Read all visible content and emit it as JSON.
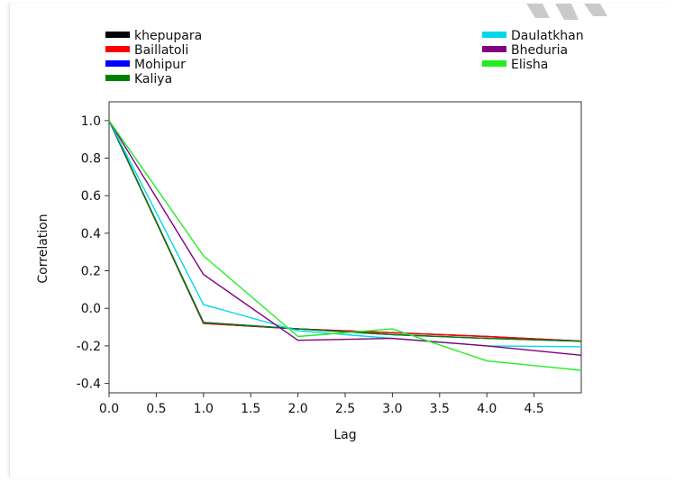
{
  "chart_data": {
    "type": "line",
    "title": "",
    "xlabel": "Lag",
    "ylabel": "Correlation",
    "xlim": [
      0,
      5
    ],
    "ylim": [
      -0.45,
      1.1
    ],
    "grid": false,
    "legend_placement": "top",
    "x_ticks": [
      "0.0",
      "0.5",
      "1.0",
      "1.5",
      "2.0",
      "2.5",
      "3.0",
      "3.5",
      "4.0",
      "4.5"
    ],
    "y_ticks": [
      "1.0",
      "0.8",
      "0.6",
      "0.4",
      "0.2",
      "0.0",
      "-0.2",
      "-0.4"
    ],
    "x": [
      0,
      1,
      2,
      3,
      4,
      5
    ],
    "series": [
      {
        "name": "khepupara",
        "color": "#000000",
        "values": [
          1.0,
          -0.08,
          -0.11,
          -0.13,
          -0.15,
          -0.175
        ]
      },
      {
        "name": "Baillatoli",
        "color": "#ff0000",
        "values": [
          1.0,
          -0.08,
          -0.11,
          -0.13,
          -0.15,
          -0.175
        ]
      },
      {
        "name": "Mohipur",
        "color": "#0000ff",
        "values": [
          1.0,
          -0.075,
          -0.11,
          -0.14,
          -0.16,
          -0.175
        ]
      },
      {
        "name": "Kaliya",
        "color": "#008000",
        "values": [
          1.0,
          -0.075,
          -0.11,
          -0.14,
          -0.16,
          -0.175
        ]
      },
      {
        "name": "Daulatkhan",
        "color": "#00d8e8",
        "values": [
          1.0,
          0.02,
          -0.12,
          -0.16,
          -0.2,
          -0.205
        ]
      },
      {
        "name": "Bheduria",
        "color": "#800080",
        "values": [
          1.0,
          0.18,
          -0.17,
          -0.16,
          -0.2,
          -0.25
        ]
      },
      {
        "name": "Elisha",
        "color": "#22ee22",
        "values": [
          1.0,
          0.28,
          -0.15,
          -0.11,
          -0.28,
          -0.33
        ]
      }
    ]
  }
}
